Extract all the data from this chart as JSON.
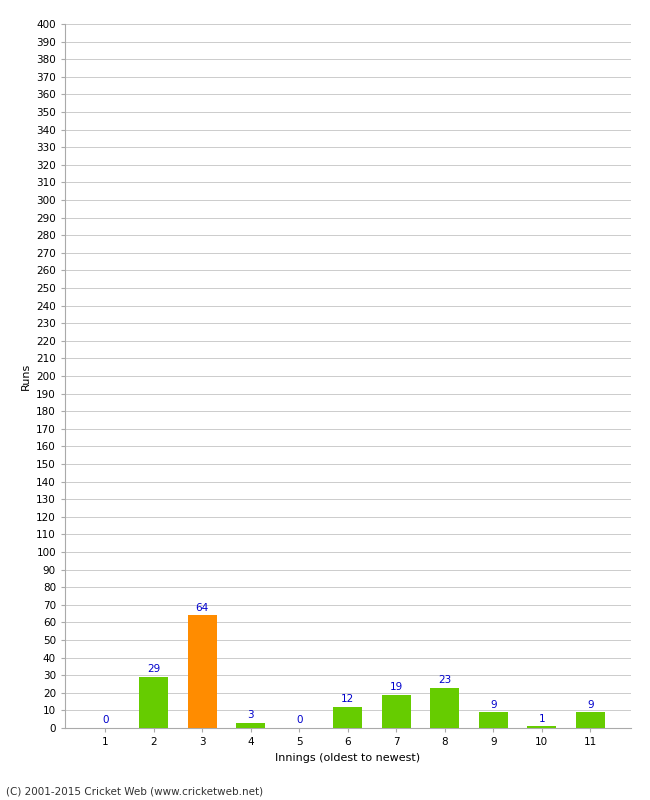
{
  "xlabel": "Innings (oldest to newest)",
  "ylabel": "Runs",
  "categories": [
    1,
    2,
    3,
    4,
    5,
    6,
    7,
    8,
    9,
    10,
    11
  ],
  "values": [
    0,
    29,
    64,
    3,
    0,
    12,
    19,
    23,
    9,
    1,
    9
  ],
  "bar_colors": [
    "#66cc00",
    "#66cc00",
    "#ff8c00",
    "#66cc00",
    "#66cc00",
    "#66cc00",
    "#66cc00",
    "#66cc00",
    "#66cc00",
    "#66cc00",
    "#66cc00"
  ],
  "ylim": [
    0,
    400
  ],
  "label_color": "#0000cc",
  "label_fontsize": 7.5,
  "tick_fontsize": 7.5,
  "ylabel_fontsize": 8,
  "xlabel_fontsize": 8,
  "background_color": "#ffffff",
  "grid_color": "#cccccc",
  "footer": "(C) 2001-2015 Cricket Web (www.cricketweb.net)",
  "footer_fontsize": 7.5
}
